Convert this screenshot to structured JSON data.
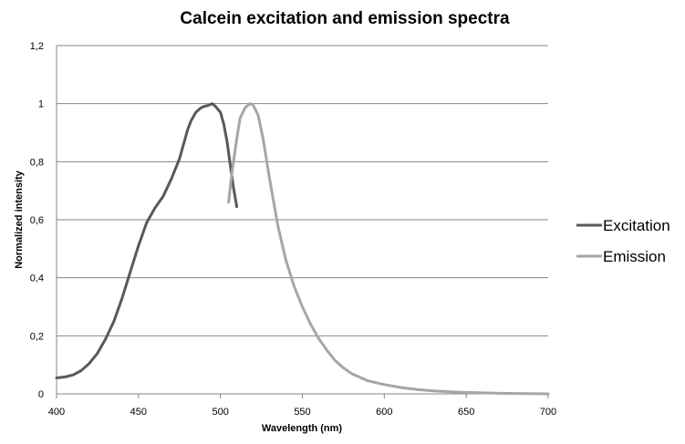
{
  "chart_data": {
    "type": "line",
    "title": "Calcein excitation and emission spectra",
    "xlabel": "Wavelength (nm)",
    "ylabel": "Normalized intensity",
    "xlim": [
      400,
      700
    ],
    "ylim": [
      0,
      1.2
    ],
    "x_ticks": [
      "400",
      "450",
      "500",
      "550",
      "600",
      "650",
      "700"
    ],
    "y_ticks": [
      "0",
      "0,2",
      "0,4",
      "0,6",
      "0,8",
      "1",
      "1,2"
    ],
    "grid": "horizontal",
    "legend_position": "right",
    "series": [
      {
        "name": "Excitation",
        "color": "#595959",
        "points": [
          [
            400,
            0.055
          ],
          [
            405,
            0.058
          ],
          [
            410,
            0.065
          ],
          [
            415,
            0.08
          ],
          [
            420,
            0.105
          ],
          [
            425,
            0.14
          ],
          [
            430,
            0.19
          ],
          [
            435,
            0.25
          ],
          [
            440,
            0.33
          ],
          [
            445,
            0.42
          ],
          [
            450,
            0.51
          ],
          [
            455,
            0.59
          ],
          [
            460,
            0.64
          ],
          [
            465,
            0.68
          ],
          [
            470,
            0.74
          ],
          [
            475,
            0.81
          ],
          [
            478,
            0.87
          ],
          [
            480,
            0.91
          ],
          [
            482,
            0.94
          ],
          [
            485,
            0.97
          ],
          [
            488,
            0.985
          ],
          [
            490,
            0.99
          ],
          [
            493,
            0.995
          ],
          [
            495,
            1.0
          ],
          [
            497,
            0.99
          ],
          [
            500,
            0.97
          ],
          [
            502,
            0.93
          ],
          [
            504,
            0.87
          ],
          [
            506,
            0.79
          ],
          [
            508,
            0.71
          ],
          [
            510,
            0.645
          ]
        ]
      },
      {
        "name": "Emission",
        "color": "#a6a6a6",
        "points": [
          [
            505,
            0.66
          ],
          [
            507,
            0.76
          ],
          [
            510,
            0.88
          ],
          [
            512,
            0.95
          ],
          [
            515,
            0.985
          ],
          [
            518,
            1.0
          ],
          [
            520,
            0.995
          ],
          [
            523,
            0.96
          ],
          [
            526,
            0.88
          ],
          [
            530,
            0.74
          ],
          [
            535,
            0.58
          ],
          [
            540,
            0.46
          ],
          [
            545,
            0.37
          ],
          [
            550,
            0.3
          ],
          [
            555,
            0.24
          ],
          [
            560,
            0.19
          ],
          [
            565,
            0.15
          ],
          [
            570,
            0.115
          ],
          [
            575,
            0.09
          ],
          [
            580,
            0.07
          ],
          [
            590,
            0.045
          ],
          [
            600,
            0.032
          ],
          [
            610,
            0.022
          ],
          [
            620,
            0.015
          ],
          [
            630,
            0.01
          ],
          [
            640,
            0.007
          ],
          [
            650,
            0.005
          ],
          [
            670,
            0.002
          ],
          [
            700,
            0.0
          ]
        ]
      }
    ]
  }
}
